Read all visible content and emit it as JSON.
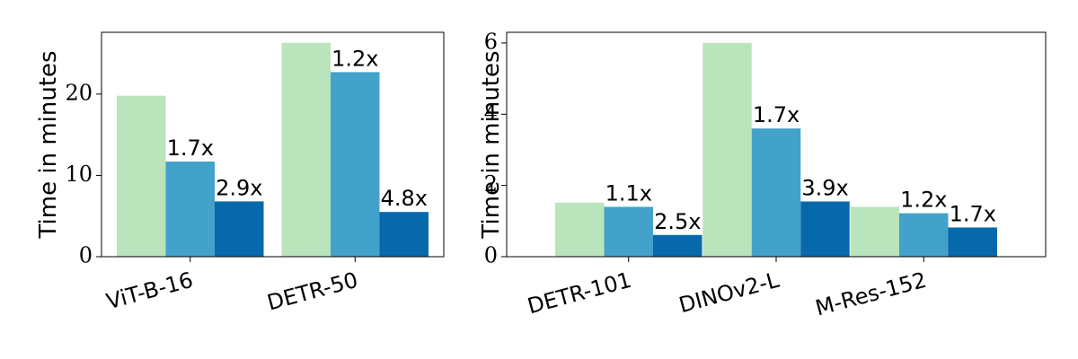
{
  "chart_data": [
    {
      "type": "bar",
      "categories": [
        "ViT-B-16",
        "DETR-50"
      ],
      "series": [
        {
          "values": [
            19.8,
            26.3
          ],
          "labels": [
            "",
            ""
          ],
          "color": "#bae4bc"
        },
        {
          "values": [
            11.7,
            22.7
          ],
          "labels": [
            "1.7x",
            "1.2x"
          ],
          "color": "#43a2ca"
        },
        {
          "values": [
            6.8,
            5.5
          ],
          "labels": [
            "2.9x",
            "4.8x"
          ],
          "color": "#0868ac"
        }
      ],
      "ylabel": "Time in minutes",
      "yticks": [
        0,
        10,
        20
      ],
      "ylim": [
        0,
        27.6
      ],
      "grid": false
    },
    {
      "type": "bar",
      "categories": [
        "DETR-101",
        "DINOv2-L",
        "M-Res-152"
      ],
      "series": [
        {
          "values": [
            1.52,
            6.0,
            1.4
          ],
          "labels": [
            "",
            "",
            ""
          ],
          "color": "#bae4bc"
        },
        {
          "values": [
            1.4,
            3.6,
            1.22
          ],
          "labels": [
            "1.1x",
            "1.7x",
            "1.2x"
          ],
          "color": "#43a2ca"
        },
        {
          "values": [
            0.61,
            1.55,
            0.82
          ],
          "labels": [
            "2.5x",
            "3.9x",
            "1.7x"
          ],
          "color": "#0868ac"
        }
      ],
      "ylabel": "Time in minutes",
      "yticks": [
        0,
        2,
        4,
        6
      ],
      "ylim": [
        0,
        6.3
      ],
      "grid": false
    }
  ]
}
